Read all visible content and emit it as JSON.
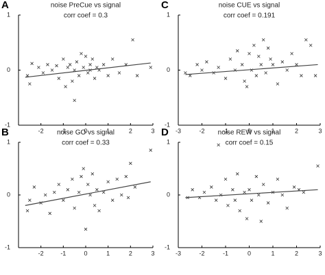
{
  "chart_data": [
    {
      "type": "scatter",
      "panel_label": "A",
      "title": "noise PreCue vs signal",
      "subtitle": "corr coef = 0.3",
      "xlim": [
        -3,
        3
      ],
      "ylim": [
        -1,
        1
      ],
      "xticks": [
        -2,
        -1,
        0,
        1,
        2,
        3
      ],
      "yticks": [
        -1,
        0,
        1
      ],
      "color": "#333333",
      "x": [
        -2.6,
        -2.5,
        -2.4,
        -2.1,
        -1.9,
        -1.7,
        -1.5,
        -1.3,
        -1.2,
        -1.0,
        -0.9,
        -0.8,
        -0.7,
        -0.6,
        -0.5,
        -0.4,
        -0.3,
        -0.2,
        -0.1,
        0,
        0.1,
        0.2,
        0.3,
        0.4,
        0.5,
        0.6,
        0.8,
        1.0,
        1.2,
        1.5,
        1.8,
        2.1,
        2.3,
        2.9,
        -0.5,
        0.2
      ],
      "values": [
        -0.1,
        -0.25,
        0.12,
        0.05,
        -0.05,
        0.1,
        0.0,
        0.08,
        -0.15,
        0.2,
        -0.3,
        0.05,
        0.1,
        -0.2,
        0.0,
        0.15,
        -0.1,
        0.3,
        0.05,
        0.25,
        -0.05,
        0.1,
        0.2,
        -0.15,
        0.05,
        0.0,
        0.1,
        -0.1,
        0.2,
        -0.05,
        0.1,
        0.55,
        -0.1,
        0.05,
        -0.55,
        0.0
      ],
      "fit": {
        "x": [
          -2.7,
          2.9
        ],
        "y": [
          -0.13,
          0.13
        ]
      }
    },
    {
      "type": "scatter",
      "panel_label": "C",
      "title": "noise CUE vs signal",
      "subtitle": "corr coef = 0.191",
      "xlim": [
        -3,
        3
      ],
      "ylim": [
        -1,
        1
      ],
      "xticks": [
        -3,
        -2,
        -1,
        0,
        1,
        2,
        3
      ],
      "yticks": [
        -1,
        0,
        1
      ],
      "color": "#333333",
      "x": [
        -2.7,
        -2.5,
        -2.2,
        -2.0,
        -1.8,
        -1.5,
        -1.3,
        -1.0,
        -0.8,
        -0.6,
        -0.5,
        -0.3,
        -0.2,
        0,
        0.1,
        0.2,
        0.3,
        0.4,
        0.5,
        0.6,
        0.7,
        0.9,
        1.0,
        1.2,
        1.4,
        1.6,
        1.8,
        2.0,
        2.2,
        2.4,
        2.6,
        2.8,
        -0.1,
        0.8
      ],
      "values": [
        -0.05,
        -0.1,
        0.1,
        0.0,
        0.15,
        -0.05,
        0.05,
        -0.15,
        0.2,
        0.0,
        0.35,
        0.1,
        -0.2,
        0.3,
        0.0,
        0.45,
        -0.1,
        0.25,
        0.1,
        0.55,
        -0.05,
        0.2,
        0.1,
        -0.25,
        0.15,
        0.0,
        0.3,
        0.1,
        -0.1,
        0.55,
        0.45,
        -0.1,
        -0.3,
        0.4
      ],
      "fit": {
        "x": [
          -2.7,
          2.9
        ],
        "y": [
          -0.08,
          0.1
        ]
      }
    },
    {
      "type": "scatter",
      "panel_label": "B",
      "title": "noise GO vs signal",
      "subtitle": "corr coef = 0.33",
      "xlim": [
        -3,
        3
      ],
      "ylim": [
        -1,
        1
      ],
      "xticks": [
        -2,
        -1,
        0,
        1,
        2,
        3
      ],
      "yticks": [
        -1,
        0,
        1
      ],
      "color": "#333333",
      "x": [
        -2.6,
        -2.5,
        -2.3,
        -2.0,
        -1.8,
        -1.6,
        -1.4,
        -1.2,
        -1.0,
        -0.8,
        -0.6,
        -0.5,
        -0.3,
        -0.2,
        0,
        0.1,
        0.2,
        0.3,
        0.5,
        0.6,
        0.8,
        1.0,
        1.2,
        1.4,
        1.6,
        1.8,
        2.0,
        2.2,
        2.9,
        -0.1,
        0.4,
        1.9
      ],
      "values": [
        -0.3,
        -0.1,
        0.15,
        -0.15,
        0.0,
        -0.35,
        0.05,
        0.2,
        -0.1,
        0.1,
        0.3,
        -0.25,
        0.05,
        0.35,
        -0.65,
        0.2,
        0.0,
        0.4,
        0.1,
        -0.3,
        0.05,
        0.25,
        -0.1,
        0.3,
        0.0,
        0.35,
        0.6,
        0.15,
        0.85,
        0.5,
        -0.2,
        -0.05
      ],
      "fit": {
        "x": [
          -2.7,
          2.9
        ],
        "y": [
          -0.2,
          0.25
        ]
      }
    },
    {
      "type": "scatter",
      "panel_label": "D",
      "title": "noise REW vs signal",
      "subtitle": "corr coef = 0.15",
      "xlim": [
        -3,
        3
      ],
      "ylim": [
        -1,
        1
      ],
      "xticks": [
        -3,
        -2,
        -1,
        0,
        1,
        2,
        3
      ],
      "yticks": [
        -1,
        0,
        1
      ],
      "color": "#333333",
      "x": [
        -2.6,
        -2.4,
        -2.1,
        -1.9,
        -1.6,
        -1.4,
        -1.2,
        -1.0,
        -0.9,
        -0.7,
        -0.5,
        -0.4,
        -0.2,
        -0.1,
        0,
        0.1,
        0.3,
        0.4,
        0.6,
        0.8,
        1.0,
        1.2,
        1.4,
        1.6,
        1.9,
        2.1,
        2.3,
        2.9,
        -1.3,
        0.5,
        -0.6
      ],
      "values": [
        -0.05,
        0.1,
        -0.05,
        0.05,
        0.15,
        -0.1,
        0.0,
        0.3,
        -0.2,
        0.1,
        0.4,
        -0.3,
        0.05,
        -0.45,
        0.1,
        -0.1,
        0.35,
        0.0,
        0.2,
        -0.15,
        0.05,
        0.3,
        0.0,
        -0.25,
        0.15,
        0.1,
        0.05,
        0.55,
        0.95,
        -0.5,
        -0.1
      ],
      "fit": {
        "x": [
          -2.7,
          2.9
        ],
        "y": [
          -0.05,
          0.1
        ]
      }
    }
  ]
}
